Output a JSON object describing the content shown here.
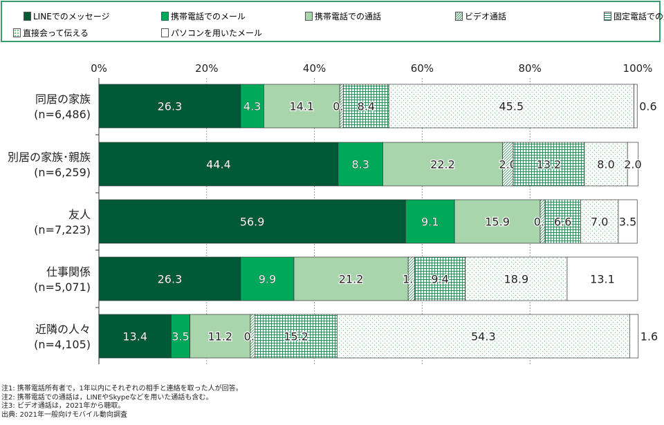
{
  "chart_data": {
    "type": "bar",
    "orientation": "horizontal-stacked-100",
    "categories": [
      [
        "同居の家族",
        "(n=6,486)"
      ],
      [
        "別居の家族･親族",
        "(n=6,259)"
      ],
      [
        "友人",
        "(n=7,223)"
      ],
      [
        "仕事関係",
        "(n=5,071)"
      ],
      [
        "近隣の人々",
        "(n=4,105)"
      ]
    ],
    "series": [
      {
        "name": "LINEでのメッセージ",
        "color": "#005a37",
        "pattern": "solid",
        "values": [
          26.3,
          44.4,
          56.9,
          26.3,
          13.4
        ]
      },
      {
        "name": "携帯電話でのメール",
        "color": "#00a85a",
        "pattern": "solid",
        "values": [
          4.3,
          8.3,
          9.1,
          9.9,
          3.5
        ]
      },
      {
        "name": "携帯電話での通話",
        "color": "#a8d5ab",
        "pattern": "solid",
        "values": [
          14.1,
          22.2,
          15.9,
          21.2,
          11.2
        ]
      },
      {
        "name": "ビデオ通話",
        "color": "#4a9a6a",
        "pattern": "diagonal",
        "values": [
          0.7,
          2.0,
          0.9,
          1.2,
          0.9
        ]
      },
      {
        "name": "固定電話での通話",
        "color": "#2e8a57",
        "pattern": "grid",
        "values": [
          8.4,
          13.2,
          6.6,
          9.4,
          15.2
        ]
      },
      {
        "name": "直接会って伝える",
        "color": "#7cc08f",
        "pattern": "dots",
        "values": [
          45.5,
          8.0,
          7.0,
          18.9,
          54.3
        ]
      },
      {
        "name": "パソコンを用いたメール",
        "color": "#ffffff",
        "pattern": "solid",
        "values": [
          0.6,
          2.0,
          3.5,
          13.1,
          1.6
        ]
      }
    ],
    "xlim": [
      0,
      100
    ],
    "xticks": [
      "0%",
      "20%",
      "40%",
      "60%",
      "80%",
      "100%"
    ],
    "grid": true,
    "legend_placement": "top"
  },
  "notes": [
    "注1: 携帯電話所有者で，1年以内にそれぞれの相手と連絡を取った人が回答。",
    "注2: 携帯電話での通話は，LINEやSkypeなどを用いた通話も含む。",
    "注3: ビデオ通話は，2021年から聴取。",
    "出典: 2021年一般向けモバイル動向調査"
  ]
}
